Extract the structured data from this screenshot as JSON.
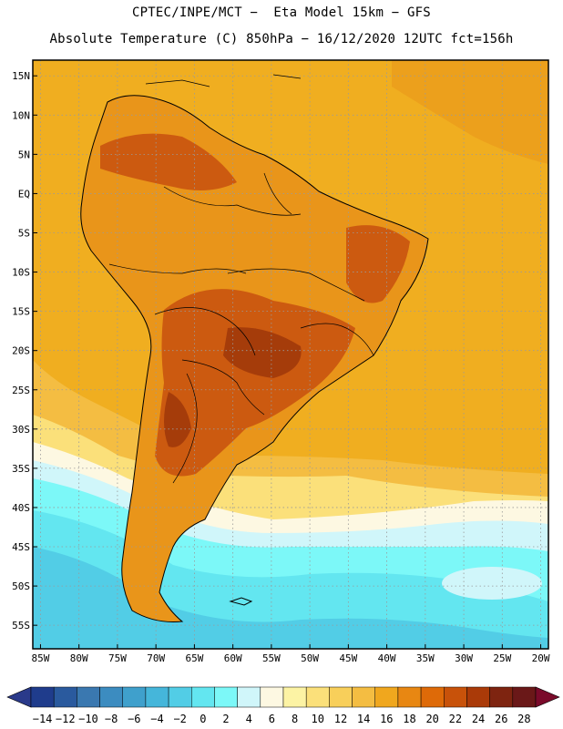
{
  "header": {
    "line1": "CPTEC/INPE/MCT −  Eta Model 15km − GFS",
    "line2": "Absolute Temperature (C) 850hPa − 16/12/2020 12UTC fct=156h"
  },
  "map": {
    "lat_labels": [
      "15N",
      "10N",
      "5N",
      "EQ",
      "5S",
      "10S",
      "15S",
      "20S",
      "25S",
      "30S",
      "35S",
      "40S",
      "45S",
      "50S",
      "55S"
    ],
    "lon_labels": [
      "85W",
      "80W",
      "75W",
      "70W",
      "65W",
      "60W",
      "55W",
      "50W",
      "45W",
      "40W",
      "35W",
      "30W",
      "25W",
      "20W"
    ],
    "lat_values": [
      15,
      10,
      5,
      0,
      -5,
      -10,
      -15,
      -20,
      -25,
      -30,
      -35,
      -40,
      -45,
      -50,
      -55
    ],
    "lon_values": [
      -85,
      -80,
      -75,
      -70,
      -65,
      -60,
      -55,
      -50,
      -45,
      -40,
      -35,
      -30,
      -25,
      -20
    ],
    "extent": {
      "lon_min": -86,
      "lon_max": -19,
      "lat_min": -58,
      "lat_max": 17
    }
  },
  "colorbar": {
    "labels": [
      "-14",
      "-12",
      "-10",
      "-8",
      "-6",
      "-4",
      "-2",
      "0",
      "2",
      "4",
      "6",
      "8",
      "10",
      "12",
      "14",
      "16",
      "18",
      "20",
      "22",
      "24",
      "26",
      "28"
    ],
    "colors": [
      "#1f3c8c",
      "#2a5a9e",
      "#3a78b0",
      "#3c8cc0",
      "#3fa0cc",
      "#45b6da",
      "#52cde6",
      "#63e6f0",
      "#7cf8f8",
      "#d0f6fa",
      "#fdf8e2",
      "#fcf3a4",
      "#fbe07a",
      "#f8cf5a",
      "#f4bd42",
      "#f0a71e",
      "#e88712",
      "#de6a08",
      "#c8520a",
      "#aa3a08",
      "#7e2410",
      "#6a1818"
    ]
  },
  "fields": {
    "ocean_color": "#f0ae20",
    "land_color": "#e9951a",
    "hot_color": "#cc5a10",
    "hotter_color": "#a53c0a"
  }
}
